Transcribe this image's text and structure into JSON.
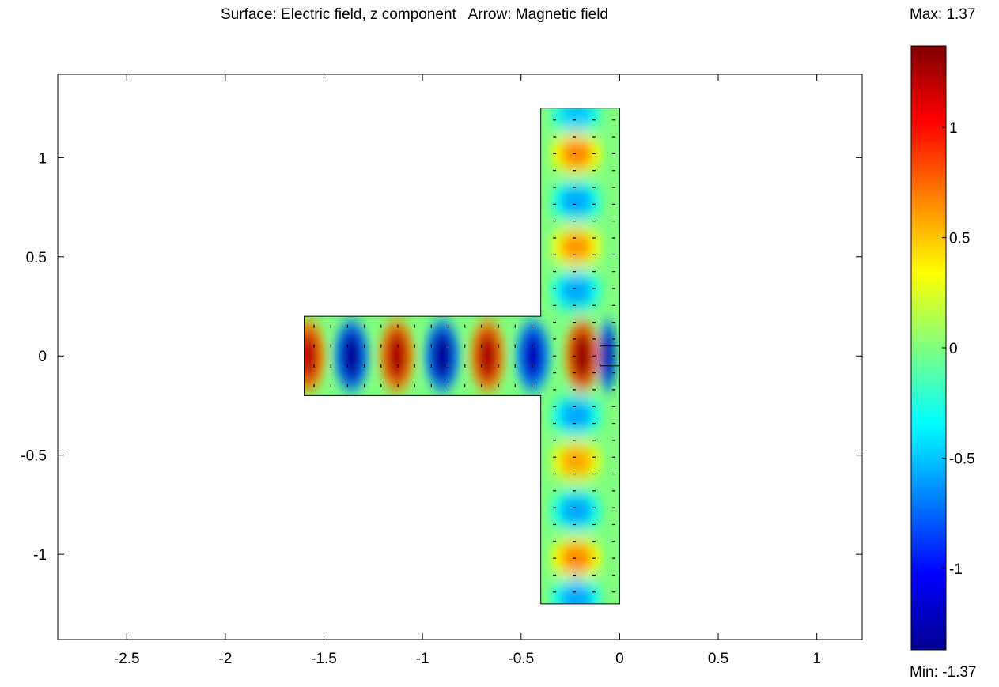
{
  "chart_data": {
    "type": "heatmap",
    "title": "Surface: Electric field, z component   Arrow: Magnetic field",
    "xlabel": "",
    "ylabel": "",
    "xlim": [
      -2.85,
      1.23
    ],
    "ylim": [
      -1.43,
      1.42
    ],
    "x_ticks": [
      -2.5,
      -2,
      -1.5,
      -1,
      -0.5,
      0,
      0.5,
      1
    ],
    "x_tick_labels": [
      "-2.5",
      "-2",
      "-1.5",
      "-1",
      "-0.5",
      "0",
      "0.5",
      "1"
    ],
    "y_ticks": [
      1,
      0.5,
      0,
      -0.5,
      -1
    ],
    "y_tick_labels": [
      "1",
      "0.5",
      "0",
      "-0.5",
      "-1"
    ],
    "geometry": {
      "horizontal_arm": {
        "x": [
          -1.6,
          -0.4
        ],
        "y": [
          -0.2,
          0.2
        ]
      },
      "vertical_arm": {
        "x": [
          -0.4,
          0.0
        ],
        "y": [
          -1.25,
          1.25
        ]
      },
      "source_box": {
        "x": [
          -0.1,
          0.0
        ],
        "y": [
          -0.05,
          0.05
        ]
      }
    },
    "horizontal_arm_antinodes": [
      {
        "x": -1.58,
        "value": 1.2
      },
      {
        "x": -1.36,
        "value": -1.3
      },
      {
        "x": -1.13,
        "value": 1.25
      },
      {
        "x": -0.9,
        "value": -1.3
      },
      {
        "x": -0.67,
        "value": 1.25
      },
      {
        "x": -0.44,
        "value": -1.2
      },
      {
        "x": -0.19,
        "value": 1.3
      },
      {
        "x": -0.06,
        "value": -1.3
      }
    ],
    "vertical_arm_antinodes": [
      {
        "y": 1.22,
        "value": -0.5
      },
      {
        "y": 1.02,
        "value": 0.7
      },
      {
        "y": 0.78,
        "value": -0.6
      },
      {
        "y": 0.55,
        "value": 0.65
      },
      {
        "y": 0.33,
        "value": -0.6
      },
      {
        "y": -0.3,
        "value": -0.6
      },
      {
        "y": -0.53,
        "value": 0.6
      },
      {
        "y": -0.78,
        "value": -0.6
      },
      {
        "y": -1.02,
        "value": 0.7
      },
      {
        "y": -1.22,
        "value": -0.6
      }
    ],
    "colorbar": {
      "colormap": "jet",
      "max": 1.37,
      "min": -1.37,
      "max_label": "Max: 1.37",
      "min_label": "Min: -1.37",
      "ticks": [
        1,
        0.5,
        0,
        -0.5,
        -1
      ],
      "tick_labels": [
        "1",
        "0.5",
        "0",
        "-0.5",
        "-1"
      ]
    },
    "grid": false,
    "legend": "none"
  }
}
